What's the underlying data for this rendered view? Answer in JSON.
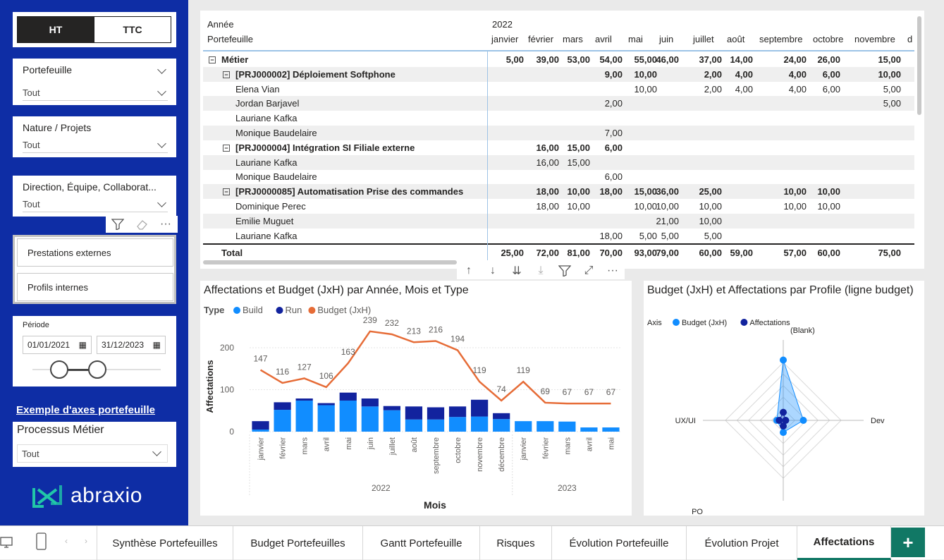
{
  "toggle": {
    "ht": "HT",
    "ttc": "TTC"
  },
  "slicers": [
    {
      "title": "Portefeuille",
      "value": "Tout"
    },
    {
      "title": "Nature / Projets",
      "value": "Tout"
    },
    {
      "title": "Direction, Équipe, Collaborat...",
      "value": "Tout"
    }
  ],
  "type_filter": {
    "items": [
      "Prestations externes",
      "Profils internes"
    ]
  },
  "period": {
    "label": "Période",
    "start": "01/01/2021",
    "end": "31/12/2023"
  },
  "link_text": "Exemple d'axes portefeuille",
  "processus": {
    "title": "Processus Métier",
    "value": "Tout"
  },
  "logo": {
    "text": "abraxio"
  },
  "matrix": {
    "year_label": "Année",
    "year": "2022",
    "row_header": "Portefeuille",
    "months": [
      "janvier",
      "février",
      "mars",
      "avril",
      "mai",
      "juin",
      "juillet",
      "août",
      "septembre",
      "octobre",
      "novembre",
      "d"
    ],
    "rows": [
      {
        "label": "Métier",
        "level": 0,
        "bold": true,
        "toggle": "⊟",
        "values": [
          "5,00",
          "39,00",
          "53,00",
          "54,00",
          "55,00",
          "46,00",
          "37,00",
          "14,00",
          "24,00",
          "26,00",
          "15,00"
        ]
      },
      {
        "label": "[PRJ000002] Déploiement Softphone",
        "level": 1,
        "bold": true,
        "toggle": "⊟",
        "values": [
          "",
          "",
          "",
          "9,00",
          "10,00",
          "",
          "2,00",
          "4,00",
          "4,00",
          "6,00",
          "10,00"
        ]
      },
      {
        "label": "Elena Vian",
        "level": 2,
        "bold": false,
        "values": [
          "",
          "",
          "",
          "",
          "10,00",
          "",
          "2,00",
          "4,00",
          "4,00",
          "6,00",
          "5,00"
        ]
      },
      {
        "label": "Jordan Barjavel",
        "level": 2,
        "bold": false,
        "values": [
          "",
          "",
          "",
          "2,00",
          "",
          "",
          "",
          "",
          "",
          "",
          "5,00"
        ]
      },
      {
        "label": "Lauriane Kafka",
        "level": 2,
        "bold": false,
        "values": [
          "",
          "",
          "",
          "",
          "",
          "",
          "",
          "",
          "",
          "",
          ""
        ]
      },
      {
        "label": "Monique Baudelaire",
        "level": 2,
        "bold": false,
        "values": [
          "",
          "",
          "",
          "7,00",
          "",
          "",
          "",
          "",
          "",
          "",
          ""
        ]
      },
      {
        "label": "[PRJ000004] Intégration SI Filiale externe",
        "level": 1,
        "bold": true,
        "toggle": "⊟",
        "values": [
          "",
          "16,00",
          "15,00",
          "6,00",
          "",
          "",
          "",
          "",
          "",
          "",
          ""
        ]
      },
      {
        "label": "Lauriane Kafka",
        "level": 2,
        "bold": false,
        "values": [
          "",
          "16,00",
          "15,00",
          "",
          "",
          "",
          "",
          "",
          "",
          "",
          ""
        ]
      },
      {
        "label": "Monique Baudelaire",
        "level": 2,
        "bold": false,
        "values": [
          "",
          "",
          "",
          "6,00",
          "",
          "",
          "",
          "",
          "",
          "",
          ""
        ]
      },
      {
        "label": "[PRJ0000085] Automatisation Prise des commandes",
        "level": 1,
        "bold": true,
        "toggle": "⊟",
        "values": [
          "",
          "18,00",
          "10,00",
          "18,00",
          "15,00",
          "36,00",
          "25,00",
          "",
          "10,00",
          "10,00",
          ""
        ]
      },
      {
        "label": "Dominique Perec",
        "level": 2,
        "bold": false,
        "values": [
          "",
          "18,00",
          "10,00",
          "",
          "10,00",
          "10,00",
          "10,00",
          "",
          "10,00",
          "10,00",
          ""
        ]
      },
      {
        "label": "Emilie Muguet",
        "level": 2,
        "bold": false,
        "values": [
          "",
          "",
          "",
          "",
          "",
          "21,00",
          "10,00",
          "",
          "",
          "",
          ""
        ]
      },
      {
        "label": "Lauriane Kafka",
        "level": 2,
        "bold": false,
        "values": [
          "",
          "",
          "",
          "18,00",
          "5,00",
          "5,00",
          "5,00",
          "",
          "",
          "",
          ""
        ]
      }
    ],
    "total": {
      "label": "Total",
      "values": [
        "25,00",
        "72,00",
        "81,00",
        "70,00",
        "93,00",
        "79,00",
        "60,00",
        "59,00",
        "57,00",
        "60,00",
        "75,00"
      ]
    }
  },
  "chart1": {
    "title": "Affectations et Budget (JxH) par Année, Mois et Type",
    "legend_title": "Type",
    "colors": {
      "Build": "#118dff",
      "Run": "#12239e",
      "Budget (JxH)": "#e66c37"
    }
  },
  "chart2": {
    "title": "Budget (JxH) et Affectations par Profile (ligne budget)",
    "legend_title": "Axis",
    "colors": {
      "Budget (JxH)": "#118dff",
      "Affectations": "#12239e"
    }
  },
  "chart_data": [
    {
      "type": "bar",
      "title": "Affectations et Budget (JxH) par Année, Mois et Type",
      "xlabel": "Mois",
      "ylabel": "Affectations",
      "ylim": [
        0,
        250
      ],
      "yticks": [
        0,
        100,
        200
      ],
      "groups": [
        {
          "label": "2022",
          "count": 12
        },
        {
          "label": "2023",
          "count": 5
        }
      ],
      "categories": [
        "janvier",
        "février",
        "mars",
        "avril",
        "mai",
        "juin",
        "juillet",
        "août",
        "septembre",
        "octobre",
        "novembre",
        "décembre",
        "janvier",
        "février",
        "mars",
        "avril",
        "mai"
      ],
      "series": [
        {
          "name": "Build",
          "kind": "bar",
          "values": [
            5,
            52,
            74,
            63,
            74,
            60,
            51,
            29,
            29,
            35,
            36,
            30,
            25,
            25,
            24,
            10,
            10
          ]
        },
        {
          "name": "Run",
          "kind": "bar",
          "values": [
            20,
            18,
            5,
            5,
            19,
            19,
            10,
            31,
            29,
            25,
            40,
            14,
            0,
            0,
            0,
            0,
            0
          ]
        },
        {
          "name": "Budget (JxH)",
          "kind": "line",
          "values": [
            147,
            116,
            127,
            106,
            163,
            239,
            232,
            213,
            216,
            194,
            119,
            74,
            119,
            69,
            67,
            67,
            67
          ]
        }
      ],
      "data_labels": [
        {
          "index": 0,
          "text": "147"
        },
        {
          "index": 1,
          "text": "116"
        },
        {
          "index": 2,
          "text": "127"
        },
        {
          "index": 3,
          "text": "106"
        },
        {
          "index": 4,
          "text": "163"
        },
        {
          "index": 5,
          "text": "239"
        },
        {
          "index": 6,
          "text": "232"
        },
        {
          "index": 7,
          "text": "213"
        },
        {
          "index": 8,
          "text": "216"
        },
        {
          "index": 9,
          "text": "194"
        },
        {
          "index": 10,
          "text": "119"
        },
        {
          "index": 11,
          "text": "74"
        },
        {
          "index": 12,
          "text": "119"
        },
        {
          "index": 13,
          "text": "69"
        },
        {
          "index": 14,
          "text": "67"
        },
        {
          "index": 15,
          "text": "67"
        },
        {
          "index": 16,
          "text": "67"
        }
      ]
    },
    {
      "type": "radar",
      "title": "Budget (JxH) et Affectations par Profile (ligne budget)",
      "axes": [
        "(Blank)",
        "Dev",
        "PO",
        "UX/UI"
      ],
      "series": [
        {
          "name": "Budget (JxH)",
          "values": [
            0.75,
            0.25,
            0.15,
            0.08
          ]
        },
        {
          "name": "Affectations",
          "values": [
            0.1,
            0.03,
            0.07,
            0.05
          ]
        }
      ]
    }
  ],
  "tabs": [
    "Synthèse Portefeuilles",
    "Budget Portefeuilles",
    "Gantt Portefeuille",
    "Risques",
    "Évolution Portefeuille",
    "Évolution Projet",
    "Affectations"
  ],
  "active_tab": "Affectations",
  "add_tab": "+"
}
